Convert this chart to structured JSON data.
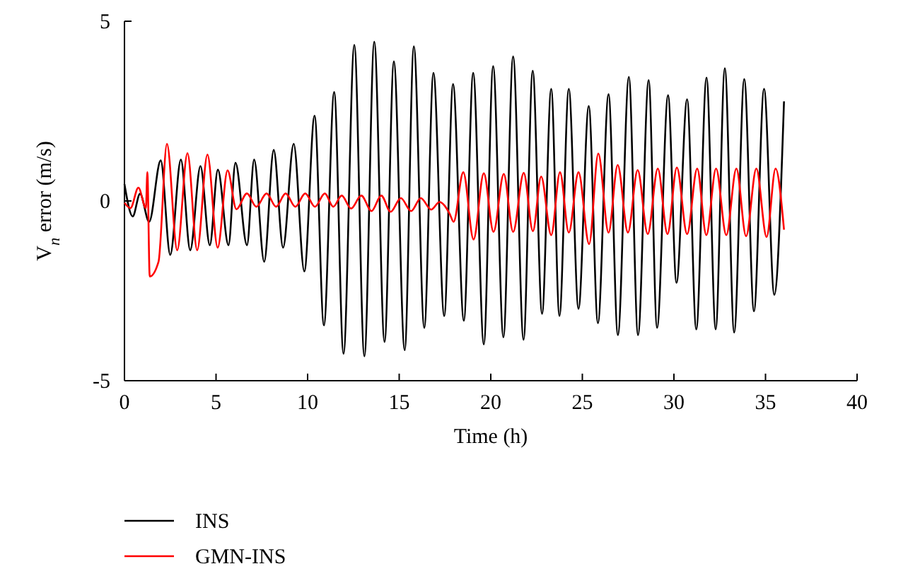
{
  "chart_data": {
    "type": "line",
    "xlabel": "Time (h)",
    "ylabel": "V$_{n}$ error (m/s)",
    "xlim": [
      0,
      40
    ],
    "xticks": [
      0,
      5,
      10,
      15,
      20,
      25,
      30,
      35,
      40
    ],
    "ylim": [
      -5,
      5
    ],
    "yticks": [
      -5,
      0,
      5
    ],
    "grid": false,
    "legend": "bottom left",
    "line_style": "solid",
    "marker": "none",
    "series": [
      {
        "name": "INS",
        "color": "#000000",
        "x": [
          0,
          0.45,
          0.85,
          1.35,
          1.98,
          2.5,
          3.08,
          3.59,
          4.15,
          4.66,
          5.1,
          5.68,
          6.06,
          6.69,
          7.08,
          7.63,
          8.15,
          8.66,
          9.24,
          9.82,
          10.38,
          10.89,
          11.45,
          11.96,
          12.55,
          13.1,
          13.64,
          14.2,
          14.71,
          15.3,
          15.8,
          16.37,
          16.87,
          17.46,
          17.94,
          18.53,
          19.04,
          19.62,
          20.13,
          20.69,
          21.22,
          21.79,
          22.29,
          22.8,
          23.3,
          23.75,
          24.26,
          24.79,
          25.35,
          25.85,
          26.43,
          26.94,
          27.54,
          28.04,
          28.62,
          29.08,
          29.68,
          30.14,
          30.72,
          31.22,
          31.78,
          32.28,
          32.78,
          33.29,
          33.84,
          34.37,
          34.92,
          35.48,
          36.01
        ],
        "values": [
          0.47,
          -0.43,
          0.2,
          -0.58,
          1.13,
          -1.5,
          1.15,
          -1.37,
          0.97,
          -1.23,
          0.87,
          -1.23,
          1.06,
          -1.23,
          1.15,
          -1.69,
          1.42,
          -1.3,
          1.59,
          -1.96,
          2.37,
          -3.46,
          3.03,
          -4.25,
          4.34,
          -4.32,
          4.43,
          -3.92,
          3.88,
          -4.15,
          4.3,
          -3.53,
          3.56,
          -3.2,
          3.25,
          -3.33,
          3.56,
          -3.99,
          3.75,
          -3.79,
          4.02,
          -3.86,
          3.62,
          -3.14,
          3.12,
          -3.2,
          3.12,
          -3.0,
          2.64,
          -3.4,
          2.97,
          -3.73,
          3.45,
          -3.73,
          3.36,
          -3.53,
          2.94,
          -2.28,
          2.83,
          -3.57,
          3.43,
          -3.57,
          3.69,
          -3.66,
          3.39,
          -3.07,
          3.12,
          -2.61,
          2.77
        ]
      },
      {
        "name": "GMN-INS",
        "color": "#ff0000",
        "x": [
          0,
          0.33,
          0.76,
          1.17,
          1.25,
          1.38,
          1.86,
          2.32,
          2.88,
          3.44,
          3.97,
          4.53,
          5.09,
          5.63,
          6.11,
          6.69,
          7.2,
          7.76,
          8.28,
          8.8,
          9.33,
          9.87,
          10.4,
          10.94,
          11.4,
          11.86,
          12.37,
          12.93,
          13.49,
          14.02,
          14.53,
          15.09,
          15.65,
          16.18,
          16.75,
          17.2,
          17.76,
          17.97,
          18.5,
          19.06,
          19.62,
          20.15,
          20.71,
          21.22,
          21.8,
          22.3,
          22.75,
          23.3,
          23.78,
          24.26,
          24.79,
          25.37,
          25.87,
          26.43,
          26.93,
          27.49,
          28.02,
          28.57,
          29.12,
          29.65,
          30.16,
          30.72,
          31.27,
          31.77,
          32.3,
          32.86,
          33.41,
          33.94,
          34.5,
          35.06,
          35.55,
          36.01
        ],
        "values": [
          -0.05,
          -0.2,
          0.37,
          -0.2,
          0.8,
          -2.1,
          -1.69,
          1.59,
          -1.37,
          1.33,
          -1.37,
          1.29,
          -1.3,
          0.85,
          -0.23,
          0.21,
          -0.16,
          0.21,
          -0.16,
          0.21,
          -0.16,
          0.21,
          -0.16,
          0.21,
          -0.16,
          0.15,
          -0.21,
          0.15,
          -0.28,
          0.15,
          -0.3,
          0.08,
          -0.28,
          0.08,
          -0.24,
          -0.03,
          -0.36,
          -0.58,
          0.8,
          -1.07,
          0.77,
          -0.86,
          0.75,
          -0.86,
          0.78,
          -0.84,
          0.68,
          -0.95,
          0.8,
          -0.88,
          0.8,
          -1.2,
          1.32,
          -0.88,
          1.0,
          -0.88,
          0.86,
          -0.92,
          0.9,
          -0.92,
          0.93,
          -0.92,
          0.9,
          -0.95,
          0.9,
          -0.95,
          0.9,
          -0.98,
          0.9,
          -1.0,
          0.9,
          -0.8
        ]
      }
    ]
  }
}
